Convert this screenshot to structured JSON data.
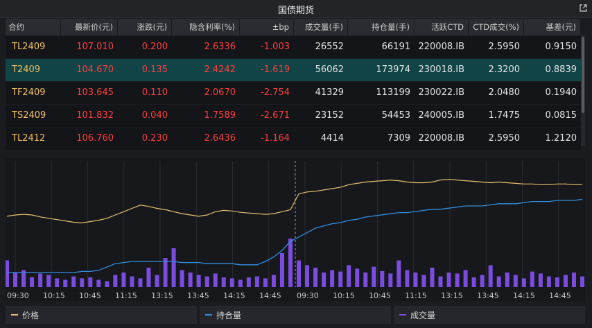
{
  "window": {
    "title": "国债期货"
  },
  "table": {
    "headers": [
      "合约",
      "最新价(元)",
      "涨跌(元)",
      "隐含利率(%)",
      "±bp",
      "成交量(手)",
      "持仓量(手)",
      "活跃CTD",
      "CTD成交(%)",
      "基差(元)"
    ],
    "rows": [
      [
        "TL2409",
        "107.010",
        "0.200",
        "2.6336",
        "-1.003",
        "26552",
        "66191",
        "220008.IB",
        "2.5950",
        "0.9150"
      ],
      [
        "T2409",
        "104.670",
        "0.135",
        "2.4242",
        "-1.619",
        "56062",
        "173974",
        "230018.IB",
        "2.3200",
        "0.8839"
      ],
      [
        "TF2409",
        "103.645",
        "0.110",
        "2.0670",
        "-2.754",
        "41329",
        "113199",
        "230022.IB",
        "2.0480",
        "0.1940"
      ],
      [
        "TS2409",
        "101.832",
        "0.040",
        "1.7589",
        "-2.671",
        "23152",
        "54453",
        "240005.IB",
        "1.7475",
        "0.0815"
      ],
      [
        "TL2412",
        "106.760",
        "0.230",
        "2.6436",
        "-1.164",
        "4414",
        "7309",
        "220008.IB",
        "2.5950",
        "1.2120"
      ]
    ],
    "selected_row": 1
  },
  "chart": {
    "x_ticks_day1": [
      "09:30",
      "10:15",
      "10:45",
      "11:15",
      "13:15",
      "13:45",
      "14:15",
      "14:45"
    ],
    "x_ticks_day2": [
      "09:30",
      "10:15",
      "10:45",
      "11:15",
      "13:15",
      "13:45",
      "14:15",
      "14:45"
    ],
    "colors": {
      "price": "#e8c070",
      "open_interest": "#2f8fe0",
      "volume": "#7a4ce0",
      "grid": "#2a2b30",
      "divider": "#9a9a9a",
      "tick": "#c8c8c8"
    }
  },
  "chart_data": {
    "type": "line",
    "series": [
      {
        "name": "价格",
        "shape": "price",
        "values": [
          0.38,
          0.4,
          0.41,
          0.4,
          0.37,
          0.35,
          0.33,
          0.31,
          0.29,
          0.28,
          0.3,
          0.32,
          0.35,
          0.4,
          0.45,
          0.5,
          0.55,
          0.53,
          0.5,
          0.48,
          0.45,
          0.42,
          0.4,
          0.38,
          0.4,
          0.45,
          0.47,
          0.46,
          0.44,
          0.43,
          0.42,
          0.41,
          0.42,
          0.45,
          0.48,
          0.72,
          0.75,
          0.76,
          0.78,
          0.8,
          0.82,
          0.86,
          0.88,
          0.9,
          0.91,
          0.92,
          0.93,
          0.92,
          0.9,
          0.89,
          0.89,
          0.9,
          0.93,
          0.94,
          0.93,
          0.92,
          0.91,
          0.9,
          0.89,
          0.9,
          0.89,
          0.88,
          0.87,
          0.87,
          0.86,
          0.86,
          0.87,
          0.87,
          0.86,
          0.86
        ]
      },
      {
        "name": "持合量",
        "shape": "open_interest",
        "values": [
          0.1,
          0.1,
          0.1,
          0.1,
          0.1,
          0.1,
          0.1,
          0.1,
          0.1,
          0.11,
          0.11,
          0.12,
          0.15,
          0.18,
          0.19,
          0.2,
          0.2,
          0.2,
          0.2,
          0.2,
          0.2,
          0.19,
          0.19,
          0.19,
          0.18,
          0.18,
          0.18,
          0.18,
          0.17,
          0.17,
          0.17,
          0.2,
          0.24,
          0.3,
          0.38,
          0.42,
          0.46,
          0.5,
          0.52,
          0.54,
          0.55,
          0.57,
          0.58,
          0.6,
          0.61,
          0.62,
          0.63,
          0.64,
          0.64,
          0.65,
          0.66,
          0.67,
          0.67,
          0.68,
          0.69,
          0.7,
          0.7,
          0.7,
          0.71,
          0.72,
          0.72,
          0.72,
          0.73,
          0.74,
          0.74,
          0.74,
          0.75,
          0.75,
          0.75,
          0.76
        ]
      },
      {
        "name": "成交量",
        "shape": "volume",
        "values": [
          0.55,
          0.3,
          0.35,
          0.2,
          0.28,
          0.25,
          0.18,
          0.15,
          0.22,
          0.18,
          0.2,
          0.15,
          0.12,
          0.25,
          0.3,
          0.22,
          0.18,
          0.4,
          0.25,
          0.6,
          0.8,
          0.35,
          0.3,
          0.25,
          0.22,
          0.28,
          0.2,
          0.18,
          0.15,
          0.2,
          0.22,
          0.18,
          0.25,
          0.7,
          1.0,
          0.55,
          0.45,
          0.4,
          0.3,
          0.35,
          0.32,
          0.45,
          0.38,
          0.3,
          0.42,
          0.33,
          0.28,
          0.55,
          0.35,
          0.3,
          0.25,
          0.4,
          0.22,
          0.3,
          0.28,
          0.35,
          0.2,
          0.25,
          0.45,
          0.22,
          0.3,
          0.25,
          0.18,
          0.32,
          0.28,
          0.22,
          0.2,
          0.25,
          0.3,
          0.22
        ]
      }
    ],
    "legend": [
      {
        "label": "价格",
        "color": "#e8c070"
      },
      {
        "label": "持合量",
        "color": "#2f8fe0"
      },
      {
        "label": "成交量",
        "color": "#7a4ce0"
      }
    ]
  }
}
